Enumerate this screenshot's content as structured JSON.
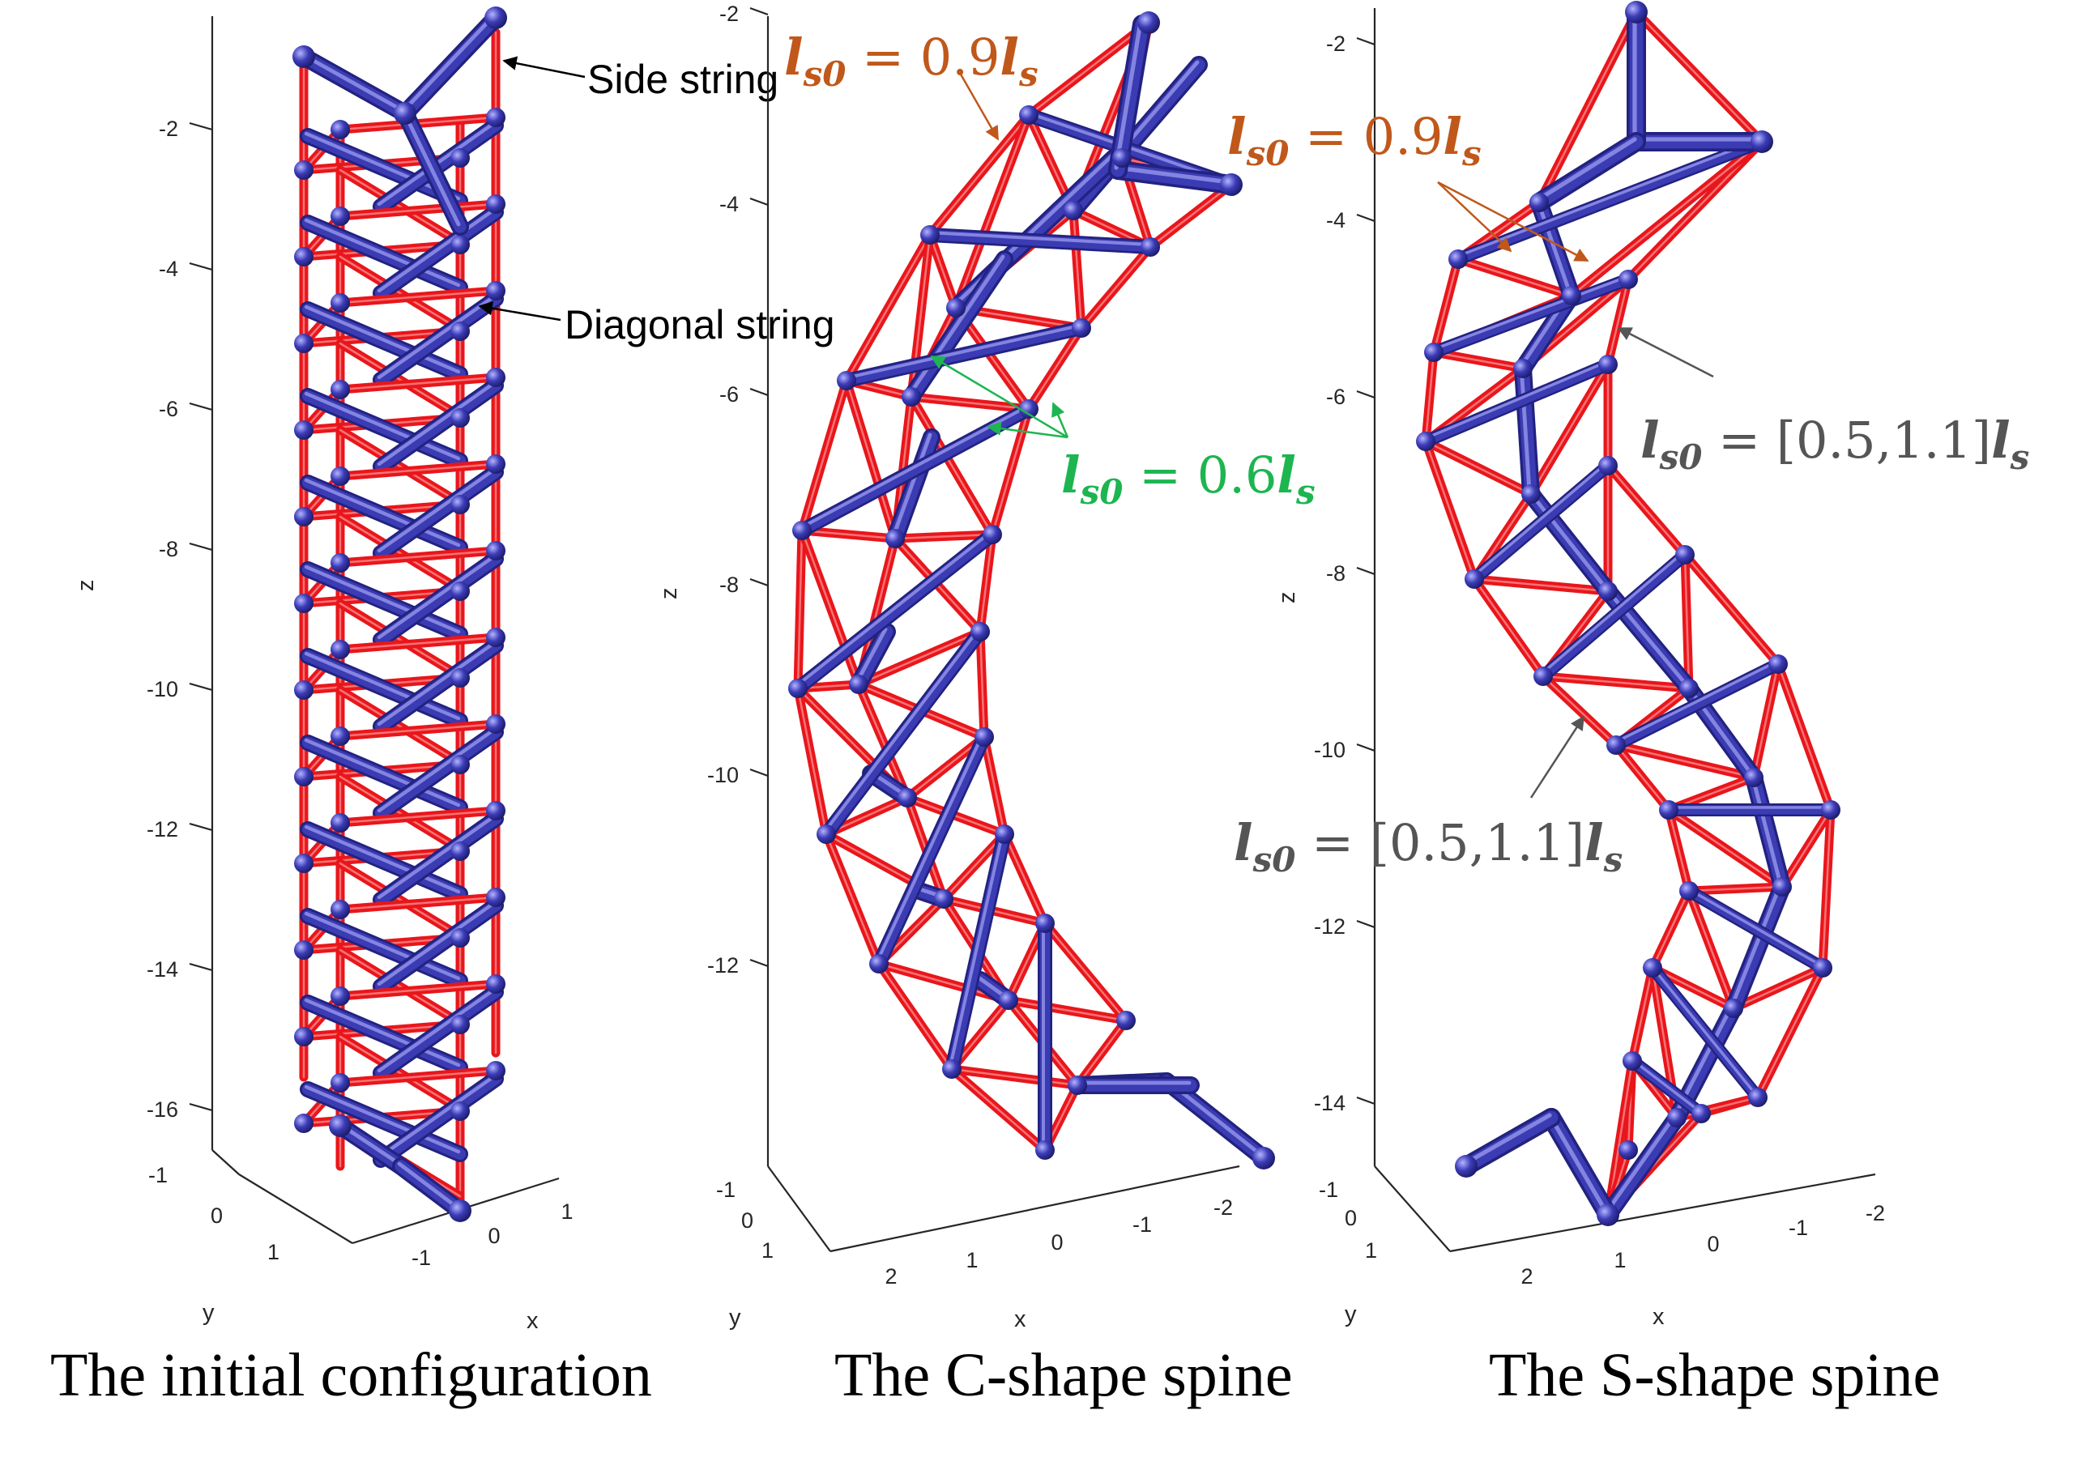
{
  "panels": [
    {
      "id": "initial",
      "caption": "The initial configuration",
      "z_label": "z",
      "x_label": "x",
      "y_label": "y",
      "z_ticks": [
        "-2",
        "-4",
        "-6",
        "-8",
        "-10",
        "-12",
        "-14",
        "-16"
      ],
      "x_ticks": [
        "-1",
        "0",
        "1"
      ],
      "y_ticks": [
        "-1",
        "0",
        "1"
      ],
      "annotations": [
        "Side string",
        "Diagonal string"
      ]
    },
    {
      "id": "c-shape",
      "caption": "The C-shape spine",
      "z_label": "z",
      "x_label": "x",
      "y_label": "y",
      "z_ticks": [
        "-2",
        "-4",
        "-6",
        "-8",
        "-10",
        "-12"
      ],
      "x_ticks": [
        "2",
        "1",
        "0",
        "-1",
        "-2"
      ],
      "y_ticks": [
        "-1",
        "0",
        "1"
      ],
      "labels": [
        {
          "prefix": "l",
          "sub": "s0",
          "mid": " = 0.9",
          "suffix": "l",
          "ssub": "s",
          "color": "#C0581B"
        },
        {
          "prefix": "l",
          "sub": "s0",
          "mid": " = 0.6",
          "suffix": "l",
          "ssub": "s",
          "color": "#1DB550"
        }
      ]
    },
    {
      "id": "s-shape",
      "caption": "The S-shape spine",
      "z_label": "z",
      "x_label": "x",
      "y_label": "y",
      "z_ticks": [
        "-2",
        "-4",
        "-6",
        "-8",
        "-10",
        "-12",
        "-14"
      ],
      "x_ticks": [
        "2",
        "1",
        "0",
        "-1",
        "-2"
      ],
      "y_ticks": [
        "-1",
        "0",
        "1"
      ],
      "labels": [
        {
          "prefix": "l",
          "sub": "s0",
          "mid": " = 0.9",
          "suffix": "l",
          "ssub": "s",
          "color": "#C0581B"
        },
        {
          "prefix": "l",
          "sub": "s0",
          "mid": " = [0.5,1.1]",
          "suffix": "l",
          "ssub": "s",
          "color": "#555555"
        },
        {
          "prefix": "l",
          "sub": "s0",
          "mid": " = [0.5,1.1]",
          "suffix": "l",
          "ssub": "s",
          "color": "#555555"
        }
      ]
    }
  ],
  "colors": {
    "string": "#E8161B",
    "bar": "#3B3BB3",
    "bar_light": "#8C8CE6",
    "bar_dark": "#222280",
    "axis": "#262626"
  }
}
